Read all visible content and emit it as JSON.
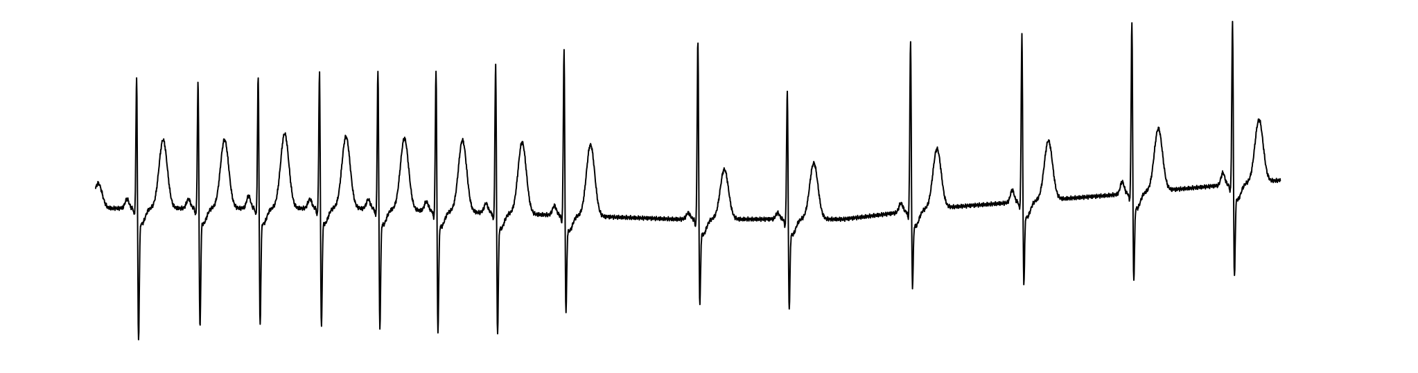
{
  "chart_data": {
    "type": "line",
    "title": "",
    "xlabel": "",
    "ylabel": "",
    "grid": false,
    "axes_visible": false,
    "legend": "none",
    "xlim": [
      0,
      1
    ],
    "ylim": [
      -0.44,
      0.58
    ],
    "line_color": "#000000",
    "background": "#ffffff",
    "series": [
      {
        "name": "",
        "baseline_segments": [
          {
            "x": [
              0.0,
              0.2
            ],
            "y": [
              0.0,
              0.0
            ]
          },
          {
            "x": [
              0.2,
              0.45
            ],
            "y": [
              0.0,
              -0.035
            ]
          },
          {
            "x": [
              0.45,
              0.58
            ],
            "y": [
              -0.035,
              -0.035
            ]
          },
          {
            "x": [
              0.58,
              0.65
            ],
            "y": [
              -0.035,
              0.0
            ]
          },
          {
            "x": [
              0.65,
              0.78
            ],
            "y": [
              0.0,
              0.04
            ]
          },
          {
            "x": [
              0.78,
              1.0
            ],
            "y": [
              0.04,
              0.12
            ]
          }
        ],
        "beats": [
          {
            "x": 0.0318,
            "r": 0.46,
            "s": -0.41,
            "t": 0.22,
            "p": 0.03
          },
          {
            "x": 0.0794,
            "r": 0.44,
            "s": -0.37,
            "t": 0.22,
            "p": 0.03
          },
          {
            "x": 0.126,
            "r": 0.46,
            "s": -0.36,
            "t": 0.24,
            "p": 0.04
          },
          {
            "x": 0.1735,
            "r": 0.47,
            "s": -0.37,
            "t": 0.23,
            "p": 0.03
          },
          {
            "x": 0.2188,
            "r": 0.48,
            "s": -0.37,
            "t": 0.23,
            "p": 0.03
          },
          {
            "x": 0.2638,
            "r": 0.48,
            "s": -0.38,
            "t": 0.23,
            "p": 0.03
          },
          {
            "x": 0.31,
            "r": 0.5,
            "s": -0.39,
            "t": 0.23,
            "p": 0.03
          },
          {
            "x": 0.363,
            "r": 0.54,
            "s": -0.32,
            "t": 0.23,
            "p": 0.03
          },
          {
            "x": 0.4667,
            "r": 0.57,
            "s": -0.3,
            "t": 0.16,
            "p": 0.02
          },
          {
            "x": 0.536,
            "r": 0.41,
            "s": -0.31,
            "t": 0.18,
            "p": 0.02
          },
          {
            "x": 0.6315,
            "r": 0.57,
            "s": -0.24,
            "t": 0.19,
            "p": 0.03
          },
          {
            "x": 0.7178,
            "r": 0.59,
            "s": -0.23,
            "t": 0.19,
            "p": 0.04
          },
          {
            "x": 0.803,
            "r": 0.63,
            "s": -0.22,
            "t": 0.2,
            "p": 0.04
          },
          {
            "x": 0.881,
            "r": 0.63,
            "s": -0.21,
            "t": 0.2,
            "p": 0.04
          }
        ],
        "start": {
          "x": 0.0,
          "y": 0.08
        },
        "end": {
          "x": 0.918,
          "y": -0.005
        }
      }
    ]
  }
}
